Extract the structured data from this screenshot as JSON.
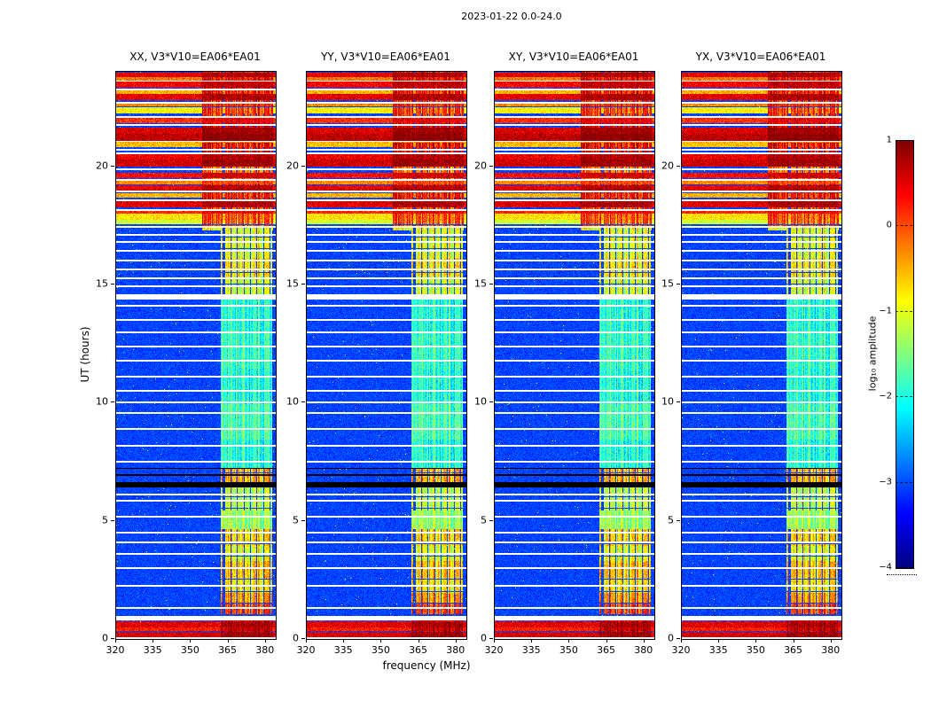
{
  "figure": {
    "title": "2023-01-22 0.0-24.0",
    "xlabel": "frequency (MHz)",
    "ylabel": "UT (hours)",
    "colorbar": {
      "label": "log₁₀ amplitude",
      "ticks": [
        "1",
        "0",
        "−1",
        "−2",
        "−3",
        "−4"
      ]
    }
  },
  "chart_data": {
    "type": "heatmap",
    "title": "2023-01-22 0.0-24.0",
    "panels": [
      {
        "label": "XX, V3*V10=EA06*EA01"
      },
      {
        "label": "YY, V3*V10=EA06*EA01"
      },
      {
        "label": "XY, V3*V10=EA06*EA01"
      },
      {
        "label": "YX, V3*V10=EA06*EA01"
      }
    ],
    "xlabel": "frequency (MHz)",
    "ylabel": "UT (hours)",
    "xlim": [
      320,
      384
    ],
    "ylim": [
      0,
      24
    ],
    "xticks": [
      320,
      335,
      350,
      365,
      380
    ],
    "yticks": [
      0,
      5,
      10,
      15,
      20
    ],
    "colorbar": {
      "label": "log10 amplitude",
      "range": [
        -4,
        1
      ],
      "ticks": [
        1,
        0,
        -1,
        -2,
        -3,
        -4
      ],
      "colormap": "jet"
    },
    "features": {
      "background_level": -3.0,
      "rfi_band_mhz": [
        362,
        382.5
      ],
      "rfi_band_wide_mhz": [
        354.5,
        383
      ],
      "band_blocks_ut": [
        [
          0.0,
          0.75,
          0.65
        ],
        [
          1.12,
          1.55,
          0.1
        ],
        [
          1.55,
          2.0,
          -0.35
        ],
        [
          2.0,
          2.6,
          -0.75
        ],
        [
          2.6,
          3.35,
          -0.55
        ],
        [
          3.35,
          4.0,
          -0.95
        ],
        [
          4.0,
          4.7,
          -0.65
        ],
        [
          4.7,
          5.5,
          -1.35
        ],
        [
          5.5,
          6.5,
          -1.15
        ],
        [
          6.55,
          7.3,
          -0.45
        ],
        [
          7.3,
          8.5,
          -1.95
        ],
        [
          8.5,
          10.0,
          -1.75
        ],
        [
          10.0,
          11.5,
          -1.95
        ],
        [
          11.5,
          13.0,
          -1.85
        ],
        [
          13.0,
          14.5,
          -1.95
        ],
        [
          14.5,
          15.4,
          -1.05
        ],
        [
          15.4,
          16.2,
          -0.75
        ],
        [
          16.2,
          17.5,
          -0.95
        ],
        [
          17.5,
          18.4,
          0.05
        ],
        [
          18.4,
          19.3,
          0.35
        ],
        [
          19.3,
          20.1,
          -0.15
        ],
        [
          20.1,
          21.0,
          0.45
        ],
        [
          21.0,
          21.9,
          0.55
        ],
        [
          21.9,
          22.8,
          0.15
        ],
        [
          22.8,
          24.0,
          0.35
        ]
      ],
      "broadband_rows_ut": [
        [
          0.1,
          0.3,
          0.55
        ],
        [
          0.38,
          0.5,
          0.25
        ],
        [
          0.56,
          0.7,
          0.5
        ],
        [
          0.8,
          0.93,
          0.3
        ],
        [
          17.62,
          17.78,
          -1.1
        ],
        [
          17.8,
          17.98,
          -0.75
        ],
        [
          18.05,
          18.14,
          0.2
        ],
        [
          18.33,
          18.52,
          0.5
        ],
        [
          18.72,
          18.84,
          -0.5
        ],
        [
          19.02,
          19.18,
          0.45
        ],
        [
          19.28,
          19.4,
          -0.3
        ],
        [
          19.55,
          19.72,
          0.35
        ],
        [
          20.05,
          20.28,
          0.6
        ],
        [
          20.34,
          20.52,
          0.45
        ],
        [
          20.85,
          21.05,
          -0.55
        ],
        [
          21.12,
          21.38,
          0.7
        ],
        [
          21.42,
          21.62,
          0.55
        ],
        [
          21.88,
          22.02,
          0.15
        ],
        [
          22.28,
          22.5,
          -0.85
        ],
        [
          22.6,
          22.68,
          -0.3
        ],
        [
          22.85,
          23.05,
          0.5
        ],
        [
          23.12,
          23.22,
          -0.5
        ],
        [
          23.38,
          23.58,
          0.4
        ],
        [
          23.68,
          23.78,
          -0.2
        ],
        [
          23.82,
          23.95,
          0.5
        ]
      ],
      "dropout_rows_ut": [
        [
          0.06,
          2
        ],
        [
          0.98,
          5
        ],
        [
          1.35,
          2
        ],
        [
          2.3,
          2
        ],
        [
          3.05,
          2
        ],
        [
          3.62,
          2
        ],
        [
          4.12,
          2
        ],
        [
          4.55,
          2
        ],
        [
          5.2,
          2
        ],
        [
          5.88,
          2
        ],
        [
          6.15,
          2
        ],
        [
          7.55,
          2
        ],
        [
          8.2,
          2
        ],
        [
          8.92,
          2
        ],
        [
          9.6,
          2
        ],
        [
          10.05,
          2
        ],
        [
          10.52,
          2
        ],
        [
          11.15,
          2
        ],
        [
          11.8,
          2
        ],
        [
          12.42,
          2
        ],
        [
          13.0,
          2
        ],
        [
          13.55,
          2
        ],
        [
          14.15,
          2
        ],
        [
          14.6,
          6
        ],
        [
          14.95,
          2
        ],
        [
          15.3,
          2
        ],
        [
          15.68,
          2
        ],
        [
          16.05,
          2
        ],
        [
          16.45,
          2
        ],
        [
          16.82,
          2
        ],
        [
          17.15,
          2
        ],
        [
          17.48,
          2
        ],
        [
          18.2,
          2
        ],
        [
          18.6,
          2
        ],
        [
          18.97,
          2
        ],
        [
          19.45,
          2
        ],
        [
          19.9,
          2
        ],
        [
          20.6,
          2
        ],
        [
          20.75,
          2
        ],
        [
          21.08,
          1
        ],
        [
          21.78,
          2
        ],
        [
          22.12,
          2
        ],
        [
          22.72,
          2
        ],
        [
          23.28,
          2
        ],
        [
          23.62,
          1
        ]
      ],
      "dark_rows_ut": [
        [
          6.62,
          6
        ],
        [
          6.98,
          2
        ],
        [
          7.25,
          1
        ]
      ]
    }
  }
}
